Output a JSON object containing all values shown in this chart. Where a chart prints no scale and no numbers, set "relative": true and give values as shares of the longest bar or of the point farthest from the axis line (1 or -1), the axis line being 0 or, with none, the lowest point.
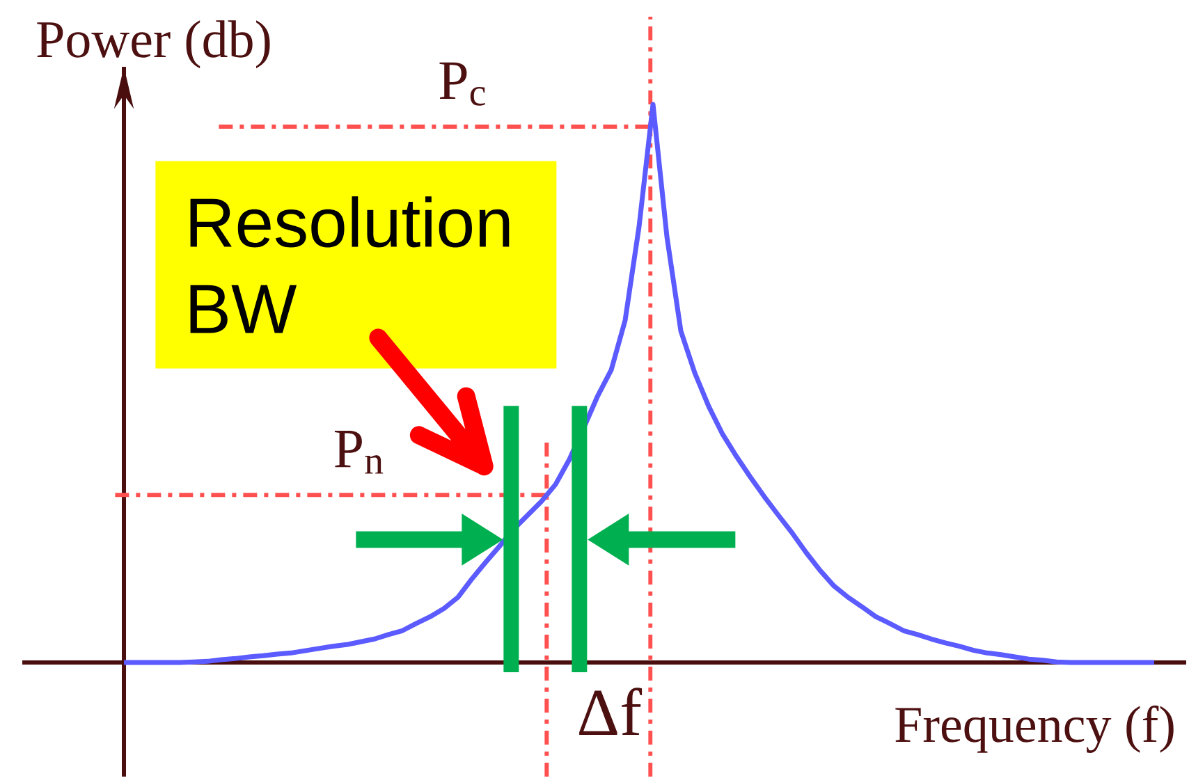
{
  "chart_data": {
    "type": "line",
    "relative": true,
    "xlabel": "Frequency (f)",
    "ylabel": "Power (db)",
    "categories": [
      null,
      null,
      null,
      null,
      null,
      null,
      null,
      null,
      null,
      null,
      null,
      null,
      null,
      null,
      null,
      null,
      null,
      null,
      null,
      null,
      null,
      null,
      null,
      null,
      null,
      null,
      null,
      null,
      null,
      null,
      null,
      null,
      null,
      null,
      null,
      null,
      null,
      null,
      null,
      null,
      null,
      null,
      null,
      null,
      null,
      null,
      null,
      null,
      null,
      null,
      null,
      null,
      null,
      null,
      null,
      null,
      null,
      null,
      null,
      null,
      null,
      null,
      null,
      null,
      null,
      null,
      null,
      null,
      null,
      null,
      null,
      null,
      null,
      null,
      null
    ],
    "values": [
      0,
      0,
      0,
      0,
      0,
      0.001,
      0.002,
      0.005,
      0.007,
      0.01,
      0.012,
      0.015,
      0.017,
      0.021,
      0.025,
      0.029,
      0.032,
      0.037,
      0.042,
      0.05,
      0.057,
      0.07,
      0.082,
      0.097,
      0.117,
      0.15,
      0.18,
      0.209,
      0.239,
      0.264,
      0.289,
      0.319,
      0.364,
      0.419,
      0.476,
      0.524,
      0.613,
      0.781,
      1,
      0.763,
      0.594,
      0.519,
      0.459,
      0.409,
      0.369,
      0.332,
      0.297,
      0.264,
      0.232,
      0.197,
      0.165,
      0.137,
      0.117,
      0.1,
      0.082,
      0.07,
      0.057,
      0.05,
      0.042,
      0.035,
      0.029,
      0.022,
      0.017,
      0.014,
      0.01,
      0.006,
      0.004,
      0.001,
      0,
      0,
      0,
      0,
      0,
      0,
      0
    ],
    "color": "#5b5bff",
    "ref_lines": [
      {
        "axis": "y",
        "value": 0.96,
        "label": "P$_{c}$",
        "color": "#ff5050",
        "line_style": "dashdot"
      },
      {
        "axis": "y",
        "value": 0.3,
        "label": "P$_{n}$",
        "color": "#ff5050",
        "line_style": "dashdot"
      }
    ],
    "annotations": [
      "Resolution BW",
      "Δf"
    ]
  }
}
